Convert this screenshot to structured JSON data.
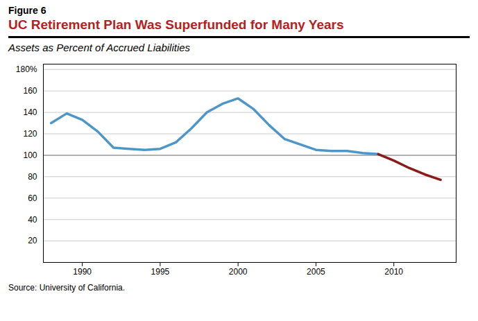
{
  "chart_data": {
    "type": "line",
    "figure_label": "Figure 6",
    "title": "UC Retirement Plan Was Superfunded for Many Years",
    "title_color": "#B22222",
    "subtitle": "Assets as Percent of Accrued Liabilities",
    "source": "Source: University of California.",
    "x": [
      1988,
      1989,
      1990,
      1991,
      1992,
      1993,
      1994,
      1995,
      1996,
      1997,
      1998,
      1999,
      2000,
      2001,
      2002,
      2003,
      2004,
      2005,
      2006,
      2007,
      2008,
      2009,
      2010,
      2011,
      2012,
      2013
    ],
    "series": [
      {
        "color": "#4F96C8",
        "values": [
          130,
          139,
          133,
          122,
          107,
          106,
          105,
          106,
          112,
          125,
          140,
          148,
          153,
          143,
          128,
          115,
          110,
          105,
          104,
          104,
          102,
          101,
          null,
          null,
          null,
          null
        ]
      },
      {
        "color": "#8B1A1A",
        "values": [
          null,
          null,
          null,
          null,
          null,
          null,
          null,
          null,
          null,
          null,
          null,
          null,
          null,
          null,
          null,
          null,
          null,
          null,
          null,
          null,
          null,
          101,
          95,
          88,
          82,
          77
        ]
      }
    ],
    "reference_line": {
      "y": 100,
      "color": "#A0A0A0"
    },
    "xlim": [
      1987.5,
      2014
    ],
    "xticks": [
      1990,
      1995,
      2000,
      2005,
      2010
    ],
    "ylim": [
      0,
      185
    ],
    "yticks": [
      {
        "value": 0,
        "label": ""
      },
      20,
      40,
      60,
      80,
      100,
      120,
      140,
      160,
      {
        "value": 180,
        "label": "180%"
      }
    ],
    "grid": true
  }
}
